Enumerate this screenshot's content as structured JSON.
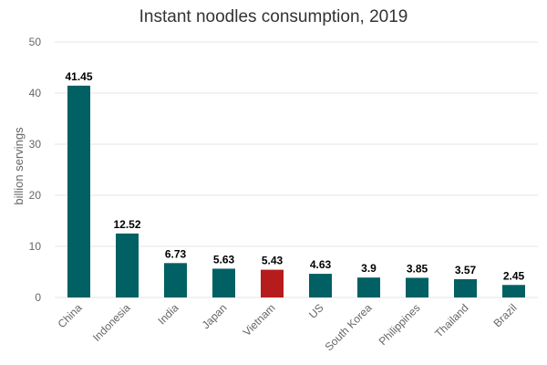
{
  "chart_data": {
    "type": "bar",
    "title": "Instant noodles consumption, 2019",
    "xlabel": "",
    "ylabel": "billion servings",
    "ylim": [
      0,
      50
    ],
    "yticks": [
      0,
      10,
      20,
      30,
      40,
      50
    ],
    "grid": true,
    "categories": [
      "China",
      "Indonesia",
      "India",
      "Japan",
      "Vietnam",
      "US",
      "South Korea",
      "Philippines",
      "Thailand",
      "Brazil"
    ],
    "values": [
      41.45,
      12.52,
      6.73,
      5.63,
      5.43,
      4.63,
      3.9,
      3.85,
      3.57,
      2.45
    ],
    "data_labels": [
      "41.45",
      "12.52",
      "6.73",
      "5.63",
      "5.43",
      "4.63",
      "3.9",
      "3.85",
      "3.57",
      "2.45"
    ],
    "colors": {
      "default": "#006064",
      "highlight": "#b71c1c"
    },
    "highlight_category": "Vietnam"
  }
}
